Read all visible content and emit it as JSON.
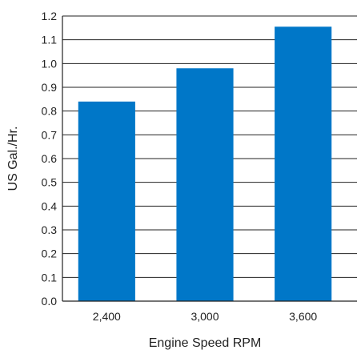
{
  "chart_data": {
    "type": "bar",
    "categories": [
      "2,400",
      "3,000",
      "3,600"
    ],
    "values": [
      0.84,
      0.98,
      1.155
    ],
    "xlabel": "Engine Speed RPM",
    "ylabel": "US Gal./Hr.",
    "ylim": [
      0,
      1.2
    ],
    "yticks": [
      "0.0",
      "0.1",
      "0.2",
      "0.3",
      "0.4",
      "0.5",
      "0.6",
      "0.7",
      "0.8",
      "0.9",
      "1.0",
      "1.1",
      "1.2"
    ],
    "grid": true,
    "legend": "none",
    "bar_color": "#0077c8"
  }
}
